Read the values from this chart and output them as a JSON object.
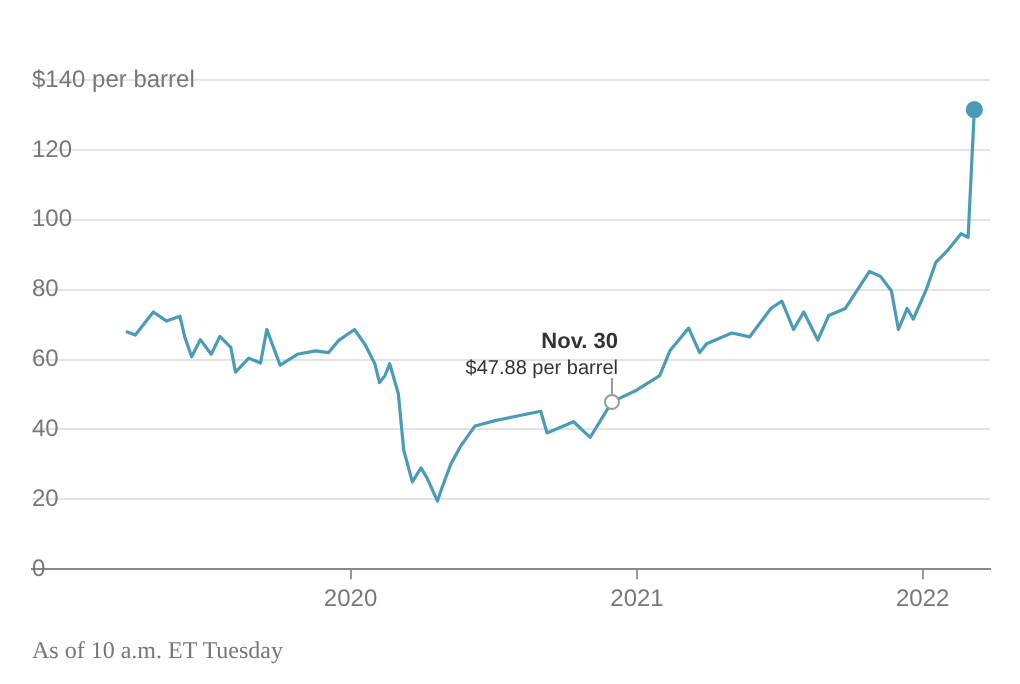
{
  "chart_data": {
    "type": "line",
    "x": [
      "2019-03-20",
      "2019-04-01",
      "2019-04-24",
      "2019-05-11",
      "2019-05-28",
      "2019-06-03",
      "2019-06-12",
      "2019-06-23",
      "2019-07-07",
      "2019-07-18",
      "2019-08-01",
      "2019-08-07",
      "2019-08-24",
      "2019-09-08",
      "2019-09-16",
      "2019-10-03",
      "2019-10-25",
      "2019-11-17",
      "2019-12-04",
      "2019-12-17",
      "2020-01-06",
      "2020-01-19",
      "2020-02-01",
      "2020-02-07",
      "2020-02-14",
      "2020-02-20",
      "2020-03-02",
      "2020-03-09",
      "2020-03-20",
      "2020-03-31",
      "2020-04-08",
      "2020-04-21",
      "2020-04-28",
      "2020-05-08",
      "2020-05-20",
      "2020-06-08",
      "2020-07-05",
      "2020-08-09",
      "2020-08-31",
      "2020-09-08",
      "2020-10-12",
      "2020-11-02",
      "2020-11-30",
      "2021-01-01",
      "2021-01-30",
      "2021-02-12",
      "2021-03-08",
      "2021-03-22",
      "2021-03-31",
      "2021-05-02",
      "2021-05-25",
      "2021-06-21",
      "2021-07-05",
      "2021-07-20",
      "2021-08-02",
      "2021-08-20",
      "2021-09-03",
      "2021-09-24",
      "2021-10-25",
      "2021-11-08",
      "2021-11-22",
      "2021-12-01",
      "2021-12-12",
      "2021-12-20",
      "2022-01-05",
      "2022-01-18",
      "2022-02-01",
      "2022-02-19",
      "2022-02-28",
      "2022-03-08"
    ],
    "series": [
      {
        "color": "#4a9bb8",
        "values": [
          68,
          67,
          73.6,
          71,
          72.4,
          66.6,
          60.8,
          65.7,
          61.5,
          66.6,
          63.5,
          56.4,
          60.4,
          59,
          68.6,
          58.4,
          61.5,
          62.5,
          62,
          65.5,
          68.6,
          64.5,
          58.8,
          53.4,
          55.4,
          58.8,
          50.3,
          34,
          25,
          29,
          26,
          19.5,
          24,
          30,
          35,
          41,
          42.6,
          44.2,
          45.2,
          39,
          42.2,
          37.7,
          47.88,
          51.3,
          55.4,
          62.5,
          69,
          62,
          64.5,
          67.6,
          66.5,
          74.6,
          76.7,
          68.6,
          73.6,
          65.6,
          72.6,
          74.6,
          85.2,
          83.8,
          79.7,
          68.6,
          74.6,
          71.6,
          79.7,
          87.9,
          91,
          96,
          95,
          131.5
        ]
      }
    ],
    "xlim": [
      "2018-11-20",
      "2022-03-28"
    ],
    "xticks": [
      {
        "value": "2020-01-01",
        "label": "2020"
      },
      {
        "value": "2021-01-01",
        "label": "2021"
      },
      {
        "value": "2022-01-01",
        "label": "2022"
      }
    ],
    "ylim": [
      0,
      140
    ],
    "yticks": [
      0,
      20,
      40,
      60,
      80,
      100,
      120,
      {
        "value": 140,
        "label": "$140 per barrel"
      }
    ],
    "grid": "y",
    "legend": false,
    "marker": "none",
    "line_style": "solid",
    "annotations": [
      {
        "text": "Nov. 30\n$47.88 per barrel",
        "x": "2020-11-30",
        "y": 47.88
      },
      "As of 10 a.m. ET Tuesday"
    ]
  }
}
